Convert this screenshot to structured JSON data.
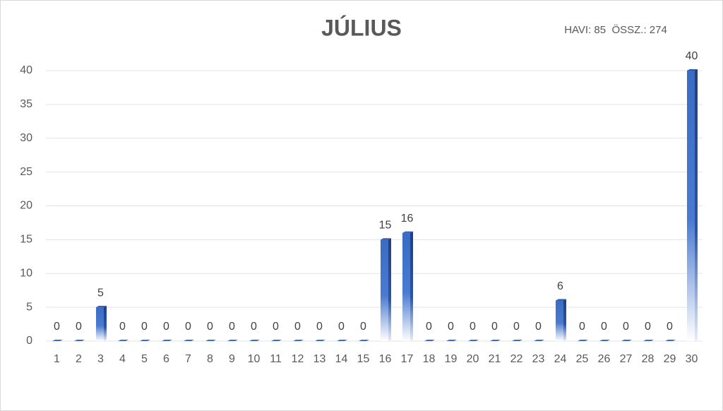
{
  "chart_data": {
    "type": "bar",
    "title": "JÚLIUS",
    "subtitle": "HAVI: 85  ÖSSZ.: 274",
    "categories": [
      "1",
      "2",
      "3",
      "4",
      "5",
      "6",
      "7",
      "8",
      "9",
      "10",
      "11",
      "12",
      "13",
      "14",
      "15",
      "16",
      "17",
      "18",
      "19",
      "20",
      "21",
      "22",
      "23",
      "24",
      "25",
      "26",
      "27",
      "28",
      "29",
      "30"
    ],
    "values": [
      0,
      0,
      5,
      0,
      0,
      0,
      0,
      0,
      0,
      0,
      0,
      0,
      0,
      0,
      0,
      15,
      16,
      0,
      0,
      0,
      0,
      0,
      0,
      6,
      0,
      0,
      0,
      0,
      0,
      40
    ],
    "color": "#3a6cc4",
    "ylim": [
      0,
      40
    ],
    "yticks": [
      0,
      5,
      10,
      15,
      20,
      25,
      30,
      35,
      40
    ],
    "grid": true
  }
}
